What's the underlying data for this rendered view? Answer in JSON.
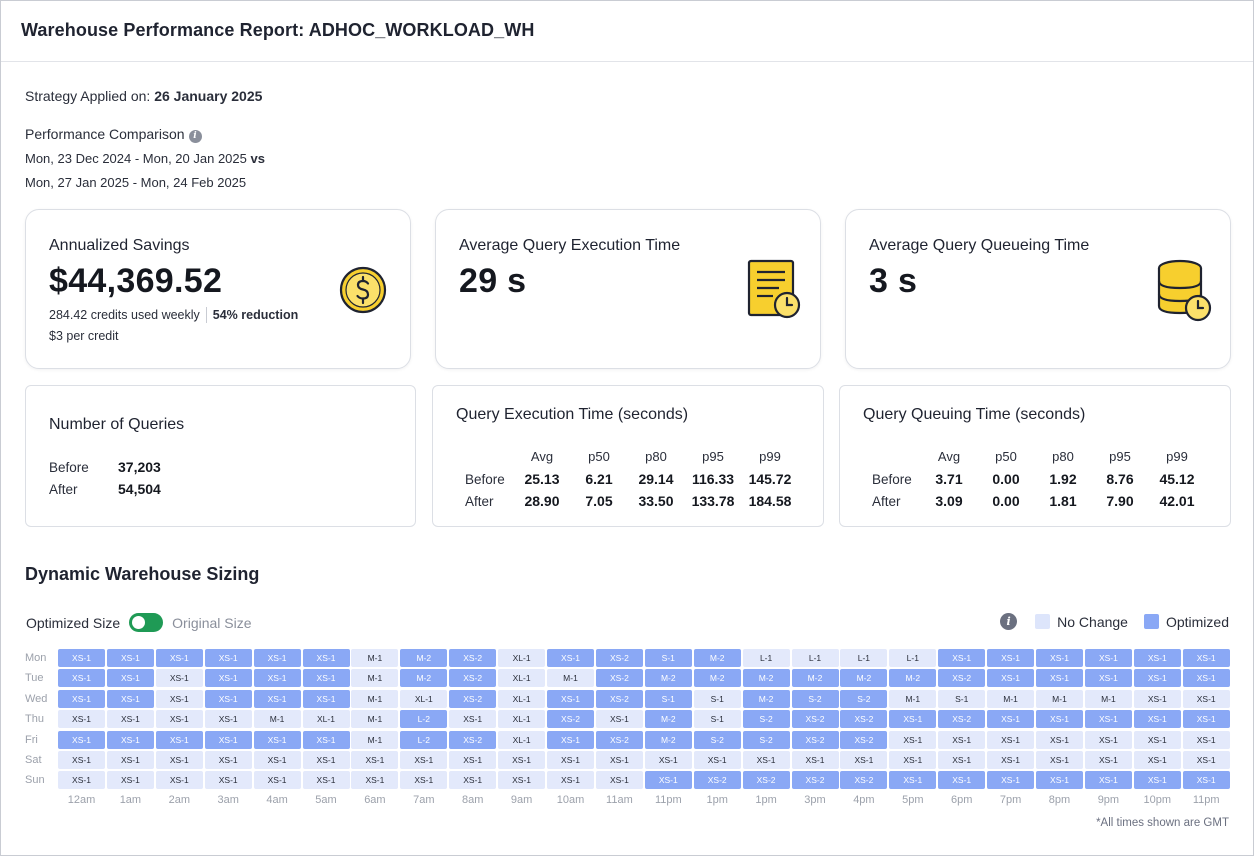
{
  "header": {
    "title": "Warehouse Performance Report: ADHOC_WORKLOAD_WH"
  },
  "strategy": {
    "label": "Strategy Applied on:",
    "date": "26 January 2025"
  },
  "comparison": {
    "label": "Performance Comparison",
    "range_before": "Mon, 23 Dec 2024 - Mon, 20 Jan 2025",
    "vs": "vs",
    "range_after": "Mon, 27 Jan 2025 - Mon, 24 Feb 2025"
  },
  "savings": {
    "title": "Annualized Savings",
    "value": "$44,369.52",
    "credits": "284.42 credits used weekly",
    "reduction": "54% reduction",
    "price": "$3 per credit",
    "icon": "dollar-coin-icon"
  },
  "avg_exec": {
    "title": "Average Query Execution Time",
    "value": "29 s",
    "icon": "document-clock-icon"
  },
  "avg_queue": {
    "title": "Average Query Queueing Time",
    "value": "3 s",
    "icon": "database-clock-icon"
  },
  "queries": {
    "title": "Number of Queries",
    "before_label": "Before",
    "before_value": "37,203",
    "after_label": "After",
    "after_value": "54,504"
  },
  "exec_table": {
    "title": "Query Execution Time (seconds)",
    "columns": [
      "Avg",
      "p50",
      "p80",
      "p95",
      "p99"
    ],
    "rows": [
      {
        "label": "Before",
        "values": [
          "25.13",
          "6.21",
          "29.14",
          "116.33",
          "145.72"
        ]
      },
      {
        "label": "After",
        "values": [
          "28.90",
          "7.05",
          "33.50",
          "133.78",
          "184.58"
        ]
      }
    ]
  },
  "queue_table": {
    "title": "Query Queuing Time (seconds)",
    "columns": [
      "Avg",
      "p50",
      "p80",
      "p95",
      "p99"
    ],
    "rows": [
      {
        "label": "Before",
        "values": [
          "3.71",
          "0.00",
          "1.92",
          "8.76",
          "45.12"
        ]
      },
      {
        "label": "After",
        "values": [
          "3.09",
          "0.00",
          "1.81",
          "7.90",
          "42.01"
        ]
      }
    ]
  },
  "sizing": {
    "title": "Dynamic Warehouse Sizing",
    "toggle_on_label": "Optimized Size",
    "toggle_off_label": "Original Size",
    "legend_no_change": "No Change",
    "legend_optimized": "Optimized",
    "colors": {
      "no_change": "#e3e9fb",
      "optimized": "#8aa8f5",
      "toggle": "#1f9a55"
    },
    "days": [
      "Mon",
      "Tue",
      "Wed",
      "Thu",
      "Fri",
      "Sat",
      "Sun"
    ],
    "hours": [
      "12am",
      "1am",
      "2am",
      "3am",
      "4am",
      "5am",
      "6am",
      "7am",
      "8am",
      "9am",
      "10am",
      "11am",
      "11pm",
      "1pm",
      "1pm",
      "3pm",
      "4pm",
      "5pm",
      "6pm",
      "7pm",
      "8pm",
      "9pm",
      "10pm",
      "11pm"
    ],
    "cells": [
      [
        "XS-1",
        "XS-1",
        "XS-1",
        "XS-1",
        "XS-1",
        "XS-1",
        "M-1",
        "M-2",
        "XS-2",
        "XL-1",
        "XS-1",
        "XS-2",
        "S-1",
        "M-2",
        "L-1",
        "L-1",
        "L-1",
        "L-1",
        "XS-1",
        "XS-1",
        "XS-1",
        "XS-1",
        "XS-1",
        "XS-1"
      ],
      [
        "XS-1",
        "XS-1",
        "XS-1",
        "XS-1",
        "XS-1",
        "XS-1",
        "M-1",
        "M-2",
        "XS-2",
        "XL-1",
        "M-1",
        "XS-2",
        "M-2",
        "M-2",
        "M-2",
        "M-2",
        "M-2",
        "M-2",
        "XS-2",
        "XS-1",
        "XS-1",
        "XS-1",
        "XS-1",
        "XS-1"
      ],
      [
        "XS-1",
        "XS-1",
        "XS-1",
        "XS-1",
        "XS-1",
        "XS-1",
        "M-1",
        "XL-1",
        "XS-2",
        "XL-1",
        "XS-1",
        "XS-2",
        "S-1",
        "S-1",
        "M-2",
        "S-2",
        "S-2",
        "M-1",
        "S-1",
        "M-1",
        "M-1",
        "M-1",
        "XS-1",
        "XS-1"
      ],
      [
        "XS-1",
        "XS-1",
        "XS-1",
        "XS-1",
        "M-1",
        "XL-1",
        "M-1",
        "L-2",
        "XS-1",
        "XL-1",
        "XS-2",
        "XS-1",
        "M-2",
        "S-1",
        "S-2",
        "XS-2",
        "XS-2",
        "XS-1",
        "XS-2",
        "XS-1",
        "XS-1",
        "XS-1",
        "XS-1",
        "XS-1"
      ],
      [
        "XS-1",
        "XS-1",
        "XS-1",
        "XS-1",
        "XS-1",
        "XS-1",
        "M-1",
        "L-2",
        "XS-2",
        "XL-1",
        "XS-1",
        "XS-2",
        "M-2",
        "S-2",
        "S-2",
        "XS-2",
        "XS-2",
        "XS-1",
        "XS-1",
        "XS-1",
        "XS-1",
        "XS-1",
        "XS-1",
        "XS-1"
      ],
      [
        "XS-1",
        "XS-1",
        "XS-1",
        "XS-1",
        "XS-1",
        "XS-1",
        "XS-1",
        "XS-1",
        "XS-1",
        "XS-1",
        "XS-1",
        "XS-1",
        "XS-1",
        "XS-1",
        "XS-1",
        "XS-1",
        "XS-1",
        "XS-1",
        "XS-1",
        "XS-1",
        "XS-1",
        "XS-1",
        "XS-1",
        "XS-1"
      ],
      [
        "XS-1",
        "XS-1",
        "XS-1",
        "XS-1",
        "XS-1",
        "XS-1",
        "XS-1",
        "XS-1",
        "XS-1",
        "XS-1",
        "XS-1",
        "XS-1",
        "XS-1",
        "XS-2",
        "XS-2",
        "XS-2",
        "XS-2",
        "XS-1",
        "XS-1",
        "XS-1",
        "XS-1",
        "XS-1",
        "XS-1",
        "XS-1"
      ]
    ],
    "optimized": [
      [
        1,
        1,
        1,
        1,
        1,
        1,
        0,
        1,
        1,
        0,
        1,
        1,
        1,
        1,
        0,
        0,
        0,
        0,
        1,
        1,
        1,
        1,
        1,
        1
      ],
      [
        1,
        1,
        0,
        1,
        1,
        1,
        0,
        1,
        1,
        0,
        0,
        1,
        1,
        1,
        1,
        1,
        1,
        1,
        1,
        1,
        1,
        1,
        1,
        1
      ],
      [
        1,
        1,
        0,
        1,
        1,
        1,
        0,
        0,
        1,
        0,
        1,
        1,
        1,
        0,
        1,
        1,
        1,
        0,
        0,
        0,
        0,
        0,
        0,
        0
      ],
      [
        0,
        0,
        0,
        0,
        0,
        0,
        0,
        1,
        0,
        0,
        1,
        0,
        1,
        0,
        1,
        1,
        1,
        1,
        1,
        1,
        1,
        1,
        1,
        1
      ],
      [
        1,
        1,
        1,
        1,
        1,
        1,
        0,
        1,
        1,
        0,
        1,
        1,
        1,
        1,
        1,
        1,
        1,
        0,
        0,
        0,
        0,
        0,
        0,
        0
      ],
      [
        0,
        0,
        0,
        0,
        0,
        0,
        0,
        0,
        0,
        0,
        0,
        0,
        0,
        0,
        0,
        0,
        0,
        0,
        0,
        0,
        0,
        0,
        0,
        0
      ],
      [
        0,
        0,
        0,
        0,
        0,
        0,
        0,
        0,
        0,
        0,
        0,
        0,
        1,
        1,
        1,
        1,
        1,
        1,
        1,
        1,
        1,
        1,
        1,
        1
      ]
    ],
    "footnote": "*All times shown are GMT"
  }
}
